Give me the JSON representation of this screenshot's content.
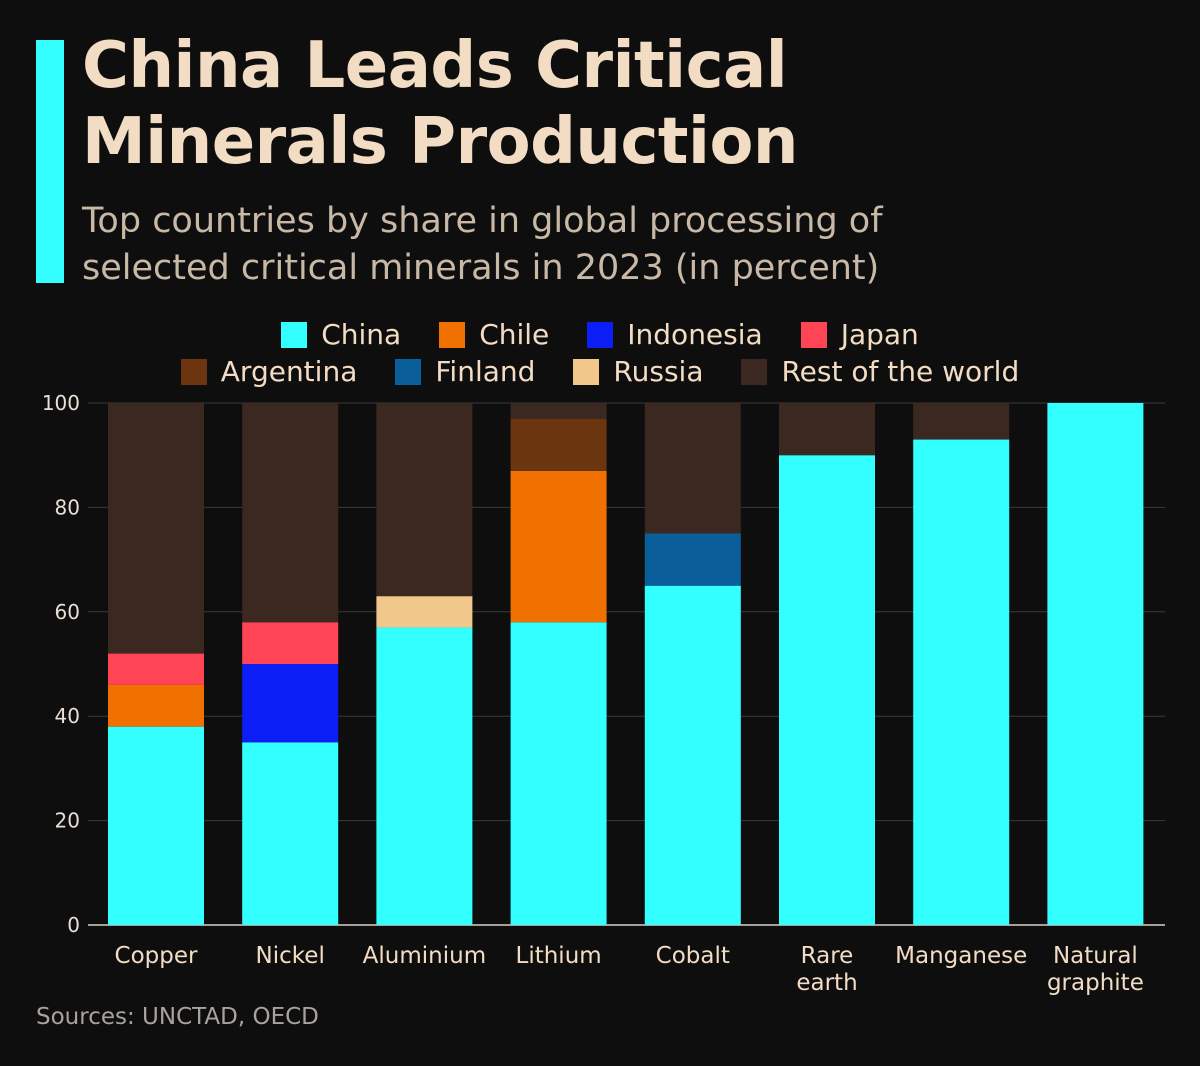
{
  "title_line1": "China Leads Critical",
  "title_line2": "Minerals Production",
  "subtitle_line1": "Top countries by share in global processing of",
  "subtitle_line2": "selected critical minerals in 2023 (in percent)",
  "source": "Sources: UNCTAD, OECD",
  "colors": {
    "accent": "#33ffff",
    "background": "#0e0e0e"
  },
  "chart_data": {
    "type": "bar",
    "stacked": true,
    "title": "China Leads Critical Minerals Production",
    "xlabel": "",
    "ylabel": "",
    "ylim": [
      0,
      100
    ],
    "yticks": [
      0,
      20,
      40,
      60,
      80,
      100
    ],
    "grid": true,
    "legend_placement": "top-center",
    "categories": [
      "Copper",
      "Nickel",
      "Aluminium",
      "Lithium",
      "Cobalt",
      "Rare earth",
      "Manganese",
      "Natural graphite"
    ],
    "series": [
      {
        "name": "China",
        "color": "#33ffff",
        "values": [
          38,
          35,
          57,
          58,
          65,
          90,
          93,
          100
        ]
      },
      {
        "name": "Chile",
        "color": "#f07000",
        "values": [
          8,
          0,
          0,
          29,
          0,
          0,
          0,
          0
        ]
      },
      {
        "name": "Indonesia",
        "color": "#0a1ef5",
        "values": [
          0,
          15,
          0,
          0,
          0,
          0,
          0,
          0
        ]
      },
      {
        "name": "Japan",
        "color": "#ff4455",
        "values": [
          6,
          8,
          0,
          0,
          0,
          0,
          0,
          0
        ]
      },
      {
        "name": "Argentina",
        "color": "#6b3510",
        "values": [
          0,
          0,
          0,
          10,
          0,
          0,
          0,
          0
        ]
      },
      {
        "name": "Finland",
        "color": "#0a5f9a",
        "values": [
          0,
          0,
          0,
          0,
          10,
          0,
          0,
          0
        ]
      },
      {
        "name": "Russia",
        "color": "#f2c78a",
        "values": [
          0,
          0,
          6,
          0,
          0,
          0,
          0,
          0
        ]
      },
      {
        "name": "Rest of the world",
        "color": "#3b2820",
        "values": [
          48,
          42,
          37,
          3,
          25,
          10,
          7,
          0
        ]
      }
    ]
  }
}
